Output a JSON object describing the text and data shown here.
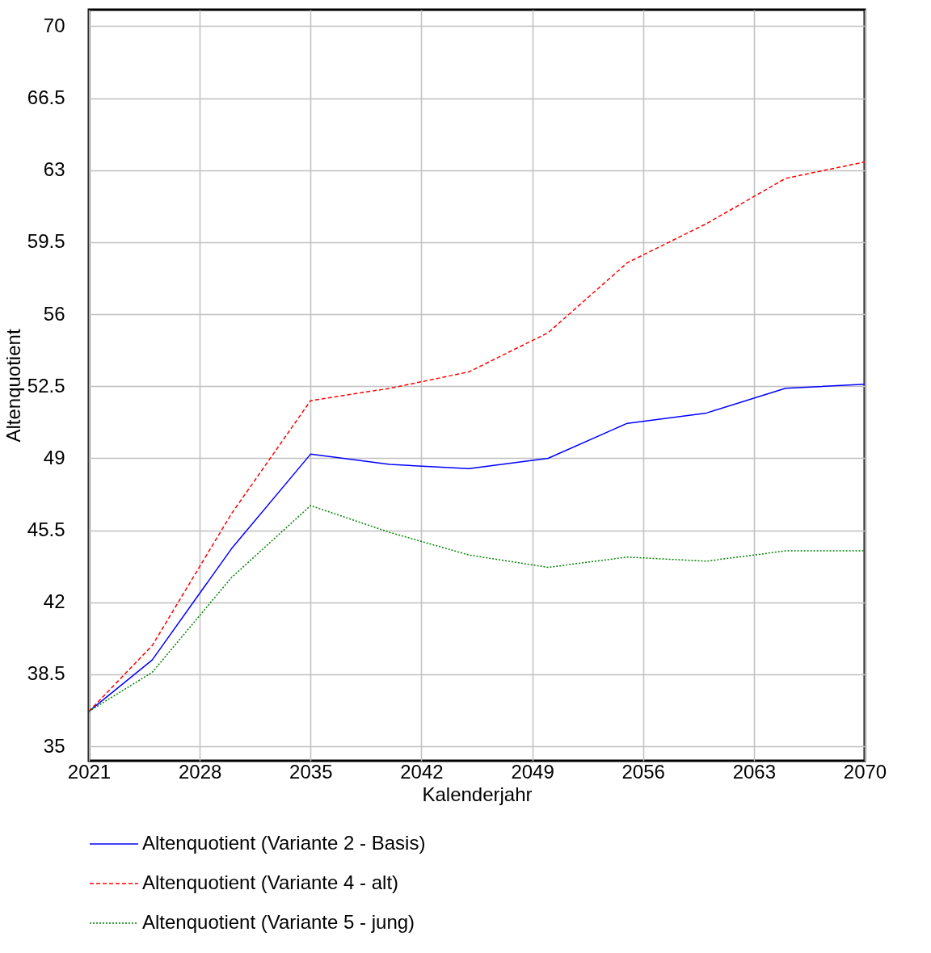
{
  "chart_data": {
    "type": "line",
    "xlabel": "Kalenderjahr",
    "ylabel": "Altenquotient",
    "x": [
      2021,
      2025,
      2030,
      2035,
      2040,
      2045,
      2050,
      2055,
      2060,
      2065,
      2070
    ],
    "xlim": [
      2021,
      2070
    ],
    "xticks": [
      2021,
      2028,
      2035,
      2042,
      2049,
      2056,
      2063,
      2070
    ],
    "ylim": [
      34.3,
      70.8
    ],
    "yticks": [
      35,
      38.5,
      42,
      45.5,
      49,
      52.5,
      56,
      59.5,
      63,
      66.5,
      70
    ],
    "grid": true,
    "legend": "bottom",
    "marker": "none",
    "series": [
      {
        "name": "Altenquotient (Variante 2 - Basis)",
        "color": "#0000ff",
        "line_style": "solid",
        "values": [
          36.7,
          39.2,
          44.6,
          49.2,
          48.7,
          48.5,
          49.0,
          50.7,
          51.2,
          52.4,
          52.6
        ]
      },
      {
        "name": "Altenquotient (Variante 4 - alt)",
        "color": "#ff0000",
        "line_style": "dashed",
        "values": [
          36.7,
          39.9,
          46.3,
          51.8,
          52.4,
          53.2,
          55.1,
          58.5,
          60.4,
          62.6,
          63.4
        ]
      },
      {
        "name": "Altenquotient (Variante 5 - jung)",
        "color": "#008000",
        "line_style": "dotted",
        "values": [
          36.7,
          38.6,
          43.2,
          46.7,
          45.4,
          44.3,
          43.7,
          44.2,
          44.0,
          44.5,
          44.5
        ]
      }
    ]
  }
}
